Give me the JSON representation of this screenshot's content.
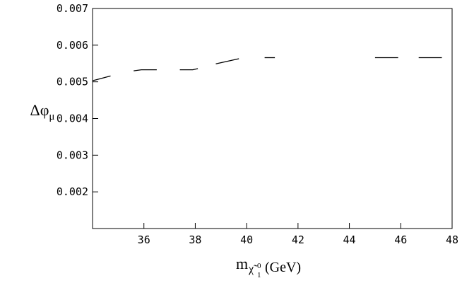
{
  "chart_data": {
    "type": "line",
    "ylabel": {
      "main": "Δφ",
      "sub": "μ"
    },
    "xlabel": {
      "main": "m",
      "sub": "χ̃",
      "sub_sup": "0",
      "sub_sub": "1",
      "suffix": "(GeV)"
    },
    "xlim": [
      34,
      48
    ],
    "ylim": [
      0.001,
      0.007
    ],
    "x_ticks": [
      {
        "value": 36,
        "label": "36"
      },
      {
        "value": 38,
        "label": "38"
      },
      {
        "value": 40,
        "label": "40"
      },
      {
        "value": 42,
        "label": "42"
      },
      {
        "value": 44,
        "label": "44"
      },
      {
        "value": 46,
        "label": "46"
      },
      {
        "value": 48,
        "label": "48"
      }
    ],
    "y_ticks": [
      {
        "value": 0.002,
        "label": "0.002"
      },
      {
        "value": 0.003,
        "label": "0.003"
      },
      {
        "value": 0.004,
        "label": "0.004"
      },
      {
        "value": 0.005,
        "label": "0.005"
      },
      {
        "value": 0.006,
        "label": "0.006"
      },
      {
        "value": 0.007,
        "label": "0.007"
      }
    ],
    "grid": false,
    "series": [
      {
        "style": "dashed",
        "segments": [
          [
            [
              34.0,
              0.00503
            ],
            [
              34.7,
              0.00516
            ]
          ],
          [
            [
              35.6,
              0.0053
            ],
            [
              35.9,
              0.00533
            ],
            [
              36.5,
              0.00533
            ]
          ],
          [
            [
              37.4,
              0.00533
            ],
            [
              37.9,
              0.00533
            ],
            [
              38.1,
              0.00536
            ]
          ],
          [
            [
              38.8,
              0.00549
            ],
            [
              39.7,
              0.00563
            ]
          ],
          [
            [
              40.7,
              0.00566
            ],
            [
              41.1,
              0.00566
            ]
          ],
          [
            [
              45.0,
              0.00566
            ],
            [
              45.9,
              0.00566
            ]
          ],
          [
            [
              46.7,
              0.00566
            ],
            [
              47.6,
              0.00566
            ]
          ]
        ]
      }
    ]
  }
}
